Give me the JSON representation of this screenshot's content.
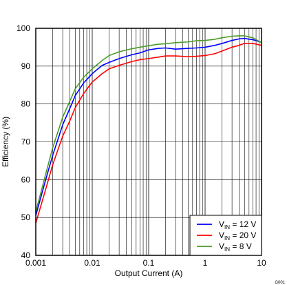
{
  "chart_data": {
    "type": "line",
    "xlabel": "Output Current (A)",
    "ylabel": "Efficiency (%)",
    "xscale": "log",
    "xlim": [
      0.001,
      10
    ],
    "ylim": [
      40,
      100
    ],
    "grid": true,
    "legend_position": "bottom-right",
    "x_tick_labels": [
      "0.001",
      "0.01",
      "0.1",
      "1",
      "10"
    ],
    "y_tick_labels": [
      "40",
      "50",
      "60",
      "70",
      "80",
      "90",
      "100"
    ],
    "figure_id": "G001",
    "series": [
      {
        "name": "VIN = 12 V",
        "legend_main": "V",
        "legend_sub": "IN",
        "legend_rest": " = 12 V",
        "color": "#0000ff",
        "x": [
          0.001,
          0.0015,
          0.002,
          0.003,
          0.004,
          0.005,
          0.007,
          0.01,
          0.015,
          0.02,
          0.03,
          0.05,
          0.07,
          0.1,
          0.15,
          0.2,
          0.3,
          0.5,
          0.7,
          1,
          1.5,
          2,
          3,
          4,
          5,
          7,
          10
        ],
        "y": [
          50.5,
          60,
          66.5,
          74.5,
          78.8,
          82.2,
          85.5,
          88,
          90.2,
          91,
          92,
          93,
          93.5,
          94.3,
          94.7,
          94.8,
          94.5,
          94.7,
          94.8,
          95,
          95.5,
          96,
          96.8,
          97.2,
          97.3,
          97,
          96.3
        ]
      },
      {
        "name": "VIN = 20 V",
        "legend_main": "V",
        "legend_sub": "IN",
        "legend_rest": " = 20 V",
        "color": "#ff0000",
        "x": [
          0.001,
          0.0015,
          0.002,
          0.003,
          0.004,
          0.005,
          0.007,
          0.01,
          0.015,
          0.02,
          0.03,
          0.05,
          0.07,
          0.1,
          0.15,
          0.2,
          0.3,
          0.5,
          0.7,
          1,
          1.5,
          2,
          3,
          4,
          5,
          7,
          10
        ],
        "y": [
          48.5,
          57.5,
          64,
          71.5,
          75.5,
          79,
          82.7,
          85.8,
          88,
          89.3,
          90.2,
          91.2,
          91.7,
          92,
          92.4,
          92.7,
          92.7,
          92.5,
          92.6,
          92.8,
          93.3,
          94,
          95,
          95.5,
          96,
          96,
          95.5
        ]
      },
      {
        "name": "VIN = 8 V",
        "legend_main": "V",
        "legend_sub": "IN",
        "legend_rest": " = 8 V",
        "color": "#4c9a2a",
        "x": [
          0.001,
          0.0015,
          0.002,
          0.003,
          0.004,
          0.005,
          0.007,
          0.01,
          0.015,
          0.02,
          0.03,
          0.05,
          0.07,
          0.1,
          0.15,
          0.2,
          0.3,
          0.5,
          0.7,
          1,
          1.5,
          2,
          3,
          4,
          5,
          7,
          10
        ],
        "y": [
          51.5,
          61.5,
          68.5,
          76.5,
          80.7,
          84,
          87,
          89.3,
          91.5,
          92.8,
          93.8,
          94.6,
          95,
          95.4,
          95.8,
          95.9,
          96.2,
          96.4,
          96.7,
          96.8,
          97.1,
          97.5,
          97.9,
          98,
          98,
          97.5,
          96.2
        ]
      }
    ]
  }
}
